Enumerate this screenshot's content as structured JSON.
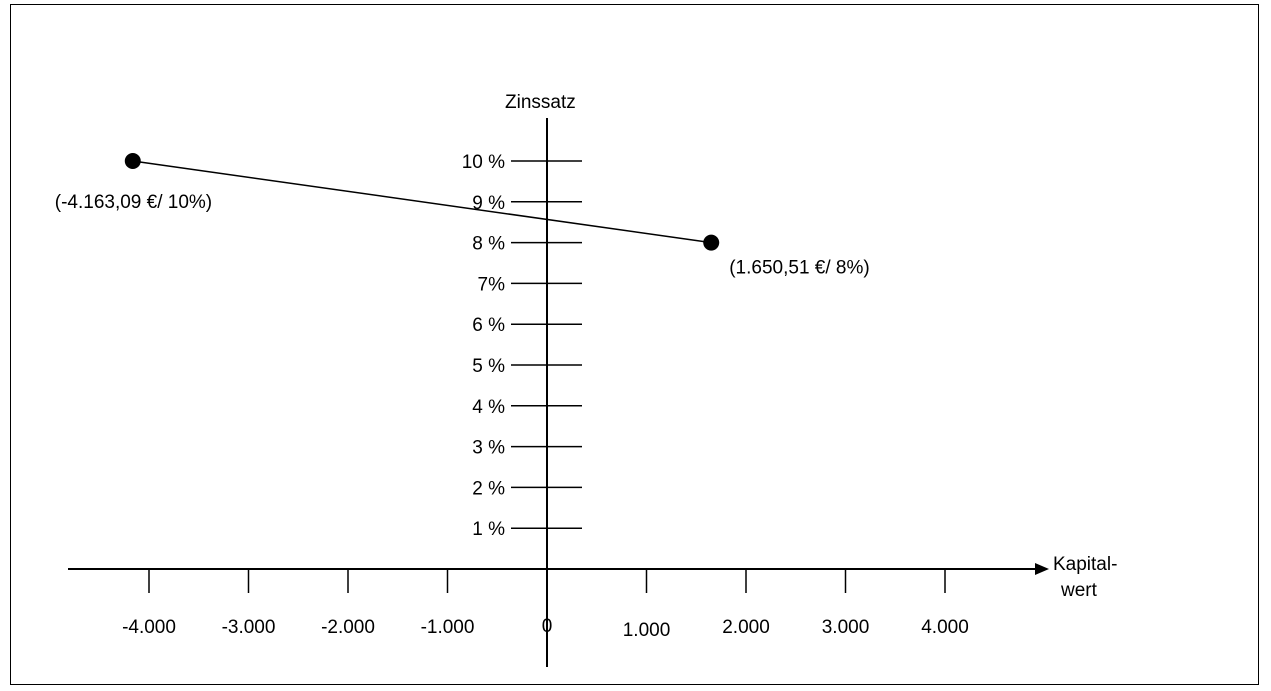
{
  "chart_data": {
    "type": "line",
    "title": "",
    "xlabel": "Kapital-\nwert",
    "ylabel": "Zinssatz",
    "xlim": [
      -4800,
      4900
    ],
    "ylim": [
      0,
      10
    ],
    "x_ticks": [
      -4000,
      -3000,
      -2000,
      -1000,
      0,
      1000,
      2000,
      3000,
      4000
    ],
    "x_tick_labels": [
      "-4.000",
      "-3.000",
      "-2.000",
      "-1.000",
      "0",
      "1.000",
      "2.000",
      "3.000",
      "4.000"
    ],
    "y_ticks": [
      1,
      2,
      3,
      4,
      5,
      6,
      7,
      8,
      9,
      10
    ],
    "y_tick_labels": [
      "1 %",
      "2 %",
      "3 %",
      "4 %",
      "5 %",
      "6 %",
      "7%",
      "8 %",
      "9 %",
      "10 %"
    ],
    "series": [
      {
        "points": [
          {
            "x": -4163.09,
            "y": 10,
            "label": "(-4.163,09 €/ 10%)"
          },
          {
            "x": 1650.51,
            "y": 8,
            "label": "(1.650,51 €/ 8%)"
          }
        ]
      }
    ],
    "grid": false,
    "legend": "none"
  }
}
